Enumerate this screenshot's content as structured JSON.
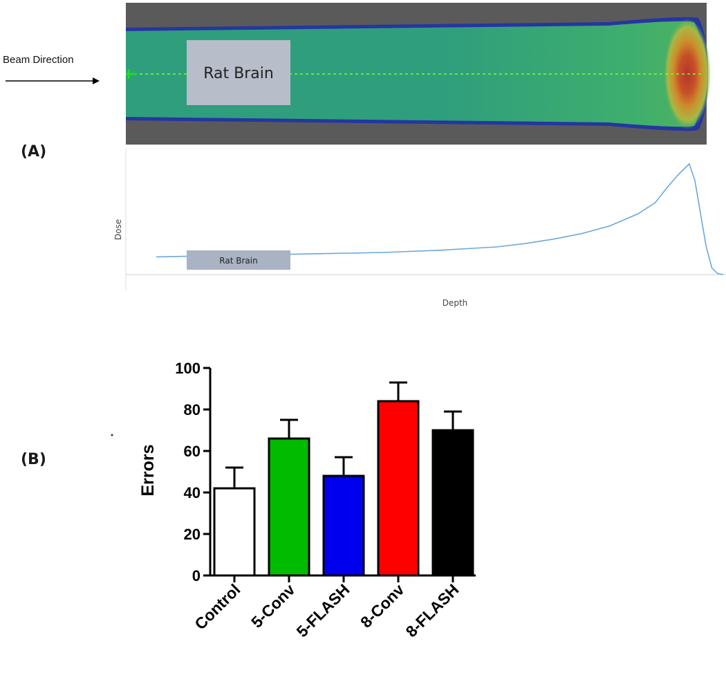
{
  "panel_a": {
    "label": "(A)",
    "beam_label": "Beam Direction",
    "rat_brain_label": "Rat Brain",
    "curve_rat_brain_label": "Rat Brain",
    "curve_ylabel": "Dose",
    "curve_xlabel": "Depth"
  },
  "panel_b": {
    "label": "(B)"
  },
  "chart_data": [
    {
      "type": "line",
      "title": "",
      "xlabel": "Depth",
      "ylabel": "Dose",
      "description": "Depth-dose curve with Bragg peak",
      "x": [
        0,
        10,
        20,
        30,
        40,
        50,
        60,
        65,
        70,
        75,
        80,
        85,
        88,
        90,
        92,
        94,
        95,
        96,
        97,
        98,
        99,
        100
      ],
      "y": [
        0.16,
        0.17,
        0.18,
        0.19,
        0.2,
        0.22,
        0.25,
        0.28,
        0.32,
        0.37,
        0.44,
        0.55,
        0.65,
        0.78,
        0.9,
        1.0,
        0.85,
        0.55,
        0.25,
        0.06,
        0.01,
        0.0
      ],
      "ylim": [
        0,
        1.05
      ],
      "grid": false
    },
    {
      "type": "bar",
      "title": "",
      "xlabel": "",
      "ylabel": "Errors",
      "categories": [
        "Control",
        "5-Conv",
        "5-FLASH",
        "8-Conv",
        "8-FLASH"
      ],
      "values": [
        42,
        66,
        48,
        84,
        70
      ],
      "errors": [
        10,
        9,
        9,
        9,
        9
      ],
      "colors": [
        "#ffffff",
        "#00bb00",
        "#0000ee",
        "#ff0000",
        "#000000"
      ],
      "ylim": [
        0,
        100
      ],
      "yticks": [
        0,
        20,
        40,
        60,
        80,
        100
      ],
      "grid": false
    }
  ]
}
